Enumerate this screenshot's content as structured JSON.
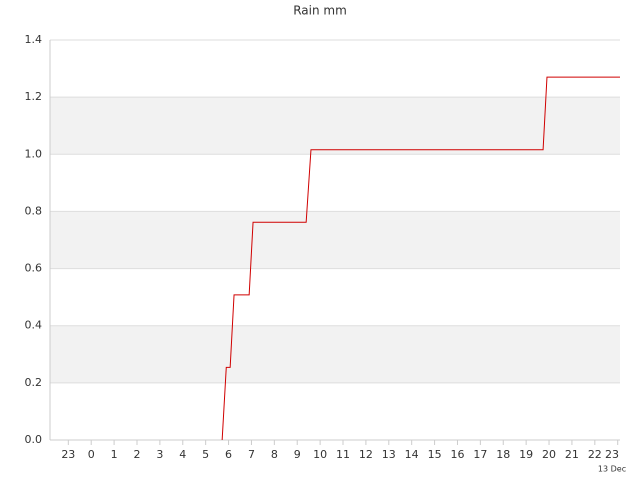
{
  "chart_data": {
    "type": "line",
    "title": "Rain mm",
    "x": [
      5.72,
      5.9,
      6.07,
      6.24,
      6.9,
      7.07,
      9.39,
      9.6,
      19.74,
      19.91,
      23.1
    ],
    "series": [
      {
        "name": "Rain",
        "color": "#d00000",
        "values": [
          0,
          0.254,
          0.254,
          0.508,
          0.508,
          0.762,
          0.762,
          1.016,
          1.016,
          1.27,
          1.27
        ]
      }
    ],
    "xlim": [
      -1.8,
      23.1
    ],
    "xticks": [
      {
        "value": -1,
        "label": "23"
      },
      0,
      1,
      2,
      3,
      4,
      5,
      6,
      7,
      8,
      9,
      10,
      11,
      12,
      13,
      14,
      15,
      16,
      17,
      18,
      19,
      20,
      21,
      22,
      23
    ],
    "x_annotation": "13 Dec",
    "ylim": [
      0,
      1.4
    ],
    "yticks": [
      {
        "value": 0,
        "label": "0.0"
      },
      0.2,
      0.4,
      0.6,
      0.8,
      {
        "value": 1,
        "label": "1.0"
      },
      1.2,
      1.4
    ],
    "grid": true,
    "bands": true
  }
}
